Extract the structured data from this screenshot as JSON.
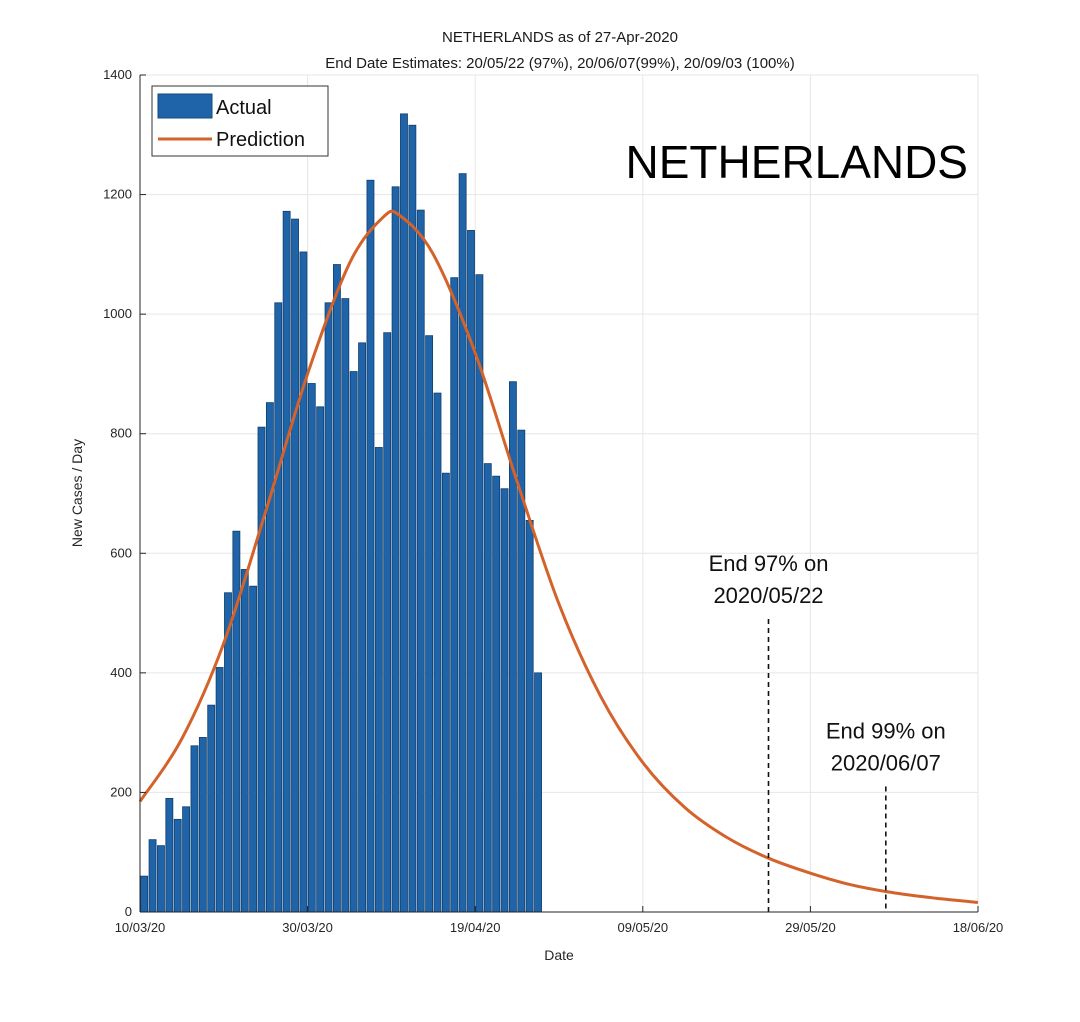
{
  "chart_data": {
    "type": "bar",
    "title": "NETHERLANDS as of 27-Apr-2020",
    "subtitle": "End Date Estimates: 20/05/22 (97%), 20/06/07(99%), 20/09/03 (100%)",
    "inset_label": "NETHERLANDS",
    "xlabel": "Date",
    "ylabel": "New Cases / Day",
    "ylim": [
      0,
      1400
    ],
    "yticks": [
      0,
      200,
      400,
      600,
      800,
      1000,
      1200,
      1400
    ],
    "x_range": [
      "2020-03-10",
      "2020-06-18"
    ],
    "xticks": [
      {
        "date": "2020-03-10",
        "label": "10/03/20"
      },
      {
        "date": "2020-03-30",
        "label": "30/03/20"
      },
      {
        "date": "2020-04-19",
        "label": "19/04/20"
      },
      {
        "date": "2020-05-09",
        "label": "09/05/20"
      },
      {
        "date": "2020-05-29",
        "label": "29/05/20"
      },
      {
        "date": "2020-06-18",
        "label": "18/06/20"
      }
    ],
    "grid": true,
    "legend": {
      "placement": "top-left",
      "entries": [
        {
          "name": "Actual",
          "color": "#1f63a8"
        },
        {
          "name": "Prediction",
          "color": "#d4622b"
        }
      ]
    },
    "series": [
      {
        "name": "Actual",
        "kind": "bar",
        "color": "#1f63a8",
        "start_date": "2020-03-10",
        "values": [
          60,
          121,
          111,
          190,
          155,
          176,
          278,
          292,
          346,
          409,
          534,
          637,
          573,
          545,
          811,
          852,
          1019,
          1172,
          1159,
          1104,
          884,
          845,
          1019,
          1083,
          1026,
          904,
          952,
          1224,
          777,
          969,
          1213,
          1335,
          1316,
          1174,
          964,
          868,
          734,
          1061,
          1235,
          1140,
          1066,
          750,
          729,
          708,
          887,
          806,
          655,
          400
        ]
      },
      {
        "name": "Prediction",
        "kind": "line",
        "color": "#d4622b",
        "points": [
          {
            "date": "2020-03-10",
            "value": 185
          },
          {
            "date": "2020-03-15",
            "value": 290
          },
          {
            "date": "2020-03-20",
            "value": 450
          },
          {
            "date": "2020-03-25",
            "value": 670
          },
          {
            "date": "2020-03-30",
            "value": 900
          },
          {
            "date": "2020-04-04",
            "value": 1085
          },
          {
            "date": "2020-04-08",
            "value": 1162
          },
          {
            "date": "2020-04-10",
            "value": 1165
          },
          {
            "date": "2020-04-14",
            "value": 1100
          },
          {
            "date": "2020-04-19",
            "value": 935
          },
          {
            "date": "2020-04-24",
            "value": 720
          },
          {
            "date": "2020-04-29",
            "value": 515
          },
          {
            "date": "2020-05-04",
            "value": 360
          },
          {
            "date": "2020-05-09",
            "value": 250
          },
          {
            "date": "2020-05-14",
            "value": 175
          },
          {
            "date": "2020-05-19",
            "value": 125
          },
          {
            "date": "2020-05-24",
            "value": 90
          },
          {
            "date": "2020-05-29",
            "value": 65
          },
          {
            "date": "2020-06-03",
            "value": 45
          },
          {
            "date": "2020-06-08",
            "value": 32
          },
          {
            "date": "2020-06-13",
            "value": 23
          },
          {
            "date": "2020-06-18",
            "value": 16
          }
        ]
      }
    ],
    "annotations": [
      {
        "date": "2020-05-24",
        "y_top": 490,
        "line1": "End 97% on",
        "line2": "2020/05/22"
      },
      {
        "date": "2020-06-07",
        "y_top": 210,
        "line1": "End 99% on",
        "line2": "2020/06/07"
      }
    ]
  }
}
